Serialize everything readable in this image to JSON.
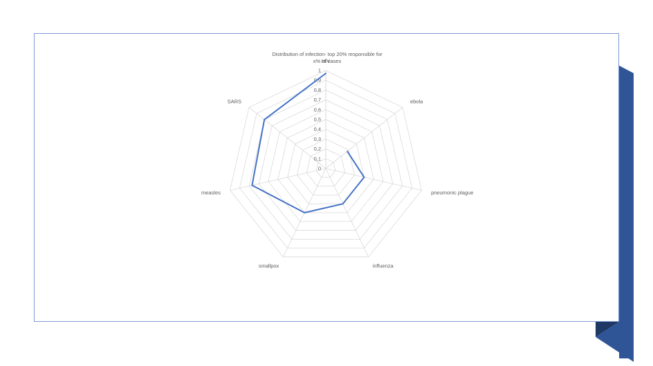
{
  "chart_data": {
    "type": "radar",
    "title_lines": [
      "Distribution of infection- top 20% responsible for",
      "x% of cases"
    ],
    "categories": [
      "ebola",
      "pneumonic plague",
      "influenza",
      "smallpox",
      "measles",
      "SARS",
      "HIV"
    ],
    "series": [
      {
        "values": [
          0.28,
          0.4,
          0.4,
          0.5,
          0.77,
          0.8,
          0.97
        ]
      }
    ],
    "axis_ticks": [
      "0",
      "0,1",
      "0,2",
      "0,3",
      "0,4",
      "0,5",
      "0,6",
      "0,7",
      "0,8",
      "0,9",
      "1"
    ],
    "range": [
      0,
      1
    ],
    "series_color": "#4472c4",
    "grid_color": "#d9d9d9"
  },
  "theme": {
    "frame_color": "#7f9ad6",
    "accent_dark": "#2f5597",
    "accent_shadow": "#1f3864"
  }
}
